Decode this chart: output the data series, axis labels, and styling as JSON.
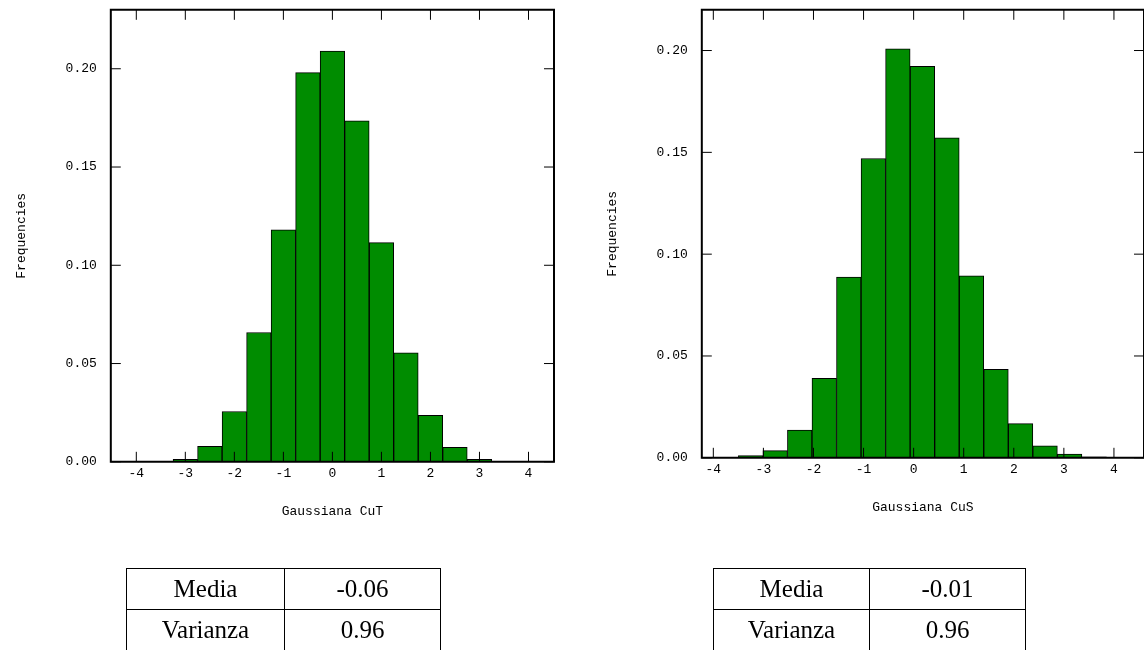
{
  "chart_data": [
    {
      "type": "histogram",
      "xlabel": "Gaussiana CuT",
      "ylabel": "Frequencies",
      "color": "#008c00",
      "bins": [
        -3.25,
        -2.75,
        -2.25,
        -1.75,
        -1.25,
        -0.75,
        -0.25,
        0.25,
        0.75,
        1.25,
        1.75,
        2.25,
        2.75,
        3.25,
        3.75
      ],
      "values": [
        0.0013,
        0.0079,
        0.0256,
        0.0658,
        0.118,
        0.198,
        0.209,
        0.1735,
        0.1115,
        0.0554,
        0.0236,
        0.0074,
        0.0013,
        0.0003
      ],
      "xlim": [
        -4.52,
        4.52
      ],
      "xticks": [
        -4,
        -3,
        -2,
        -1,
        0,
        1,
        2,
        3,
        4
      ],
      "ylim": [
        0,
        0.23
      ],
      "yticks": [
        {
          "value": 0,
          "label": "0.00"
        },
        {
          "value": 0.05,
          "label": "0.05"
        },
        {
          "value": 0.1,
          "label": "0.10"
        },
        {
          "value": 0.15,
          "label": "0.15"
        },
        {
          "value": 0.2,
          "label": "0.20"
        }
      ],
      "grid": false,
      "legend": false,
      "annotations": [
        "Media",
        "-0.06",
        "Varianza",
        "0.96"
      ]
    },
    {
      "type": "histogram",
      "xlabel": "Gaussiana CuS",
      "ylabel": "Frequencies",
      "color": "#008c00",
      "bins": [
        -3.5,
        -3.01,
        -2.52,
        -2.03,
        -1.54,
        -1.05,
        -0.56,
        -0.07,
        0.42,
        0.91,
        1.4,
        1.89,
        2.38,
        2.87,
        3.36,
        3.85
      ],
      "values": [
        0.0011,
        0.0035,
        0.0136,
        0.039,
        0.0888,
        0.147,
        0.2008,
        0.1923,
        0.1571,
        0.0893,
        0.0435,
        0.0168,
        0.0059,
        0.0018,
        0.0005
      ],
      "xlim": [
        -4.23,
        4.6
      ],
      "xticks": [
        -4,
        -3,
        -2,
        -1,
        0,
        1,
        2,
        3,
        4
      ],
      "ylim": [
        0,
        0.22
      ],
      "yticks": [
        {
          "value": 0,
          "label": "0.00"
        },
        {
          "value": 0.05,
          "label": "0.05"
        },
        {
          "value": 0.1,
          "label": "0.10"
        },
        {
          "value": 0.15,
          "label": "0.15"
        },
        {
          "value": 0.2,
          "label": "0.20"
        }
      ],
      "grid": false,
      "legend": false,
      "annotations": [
        "Media",
        "-0.01",
        "Varianza",
        "0.96"
      ]
    }
  ]
}
